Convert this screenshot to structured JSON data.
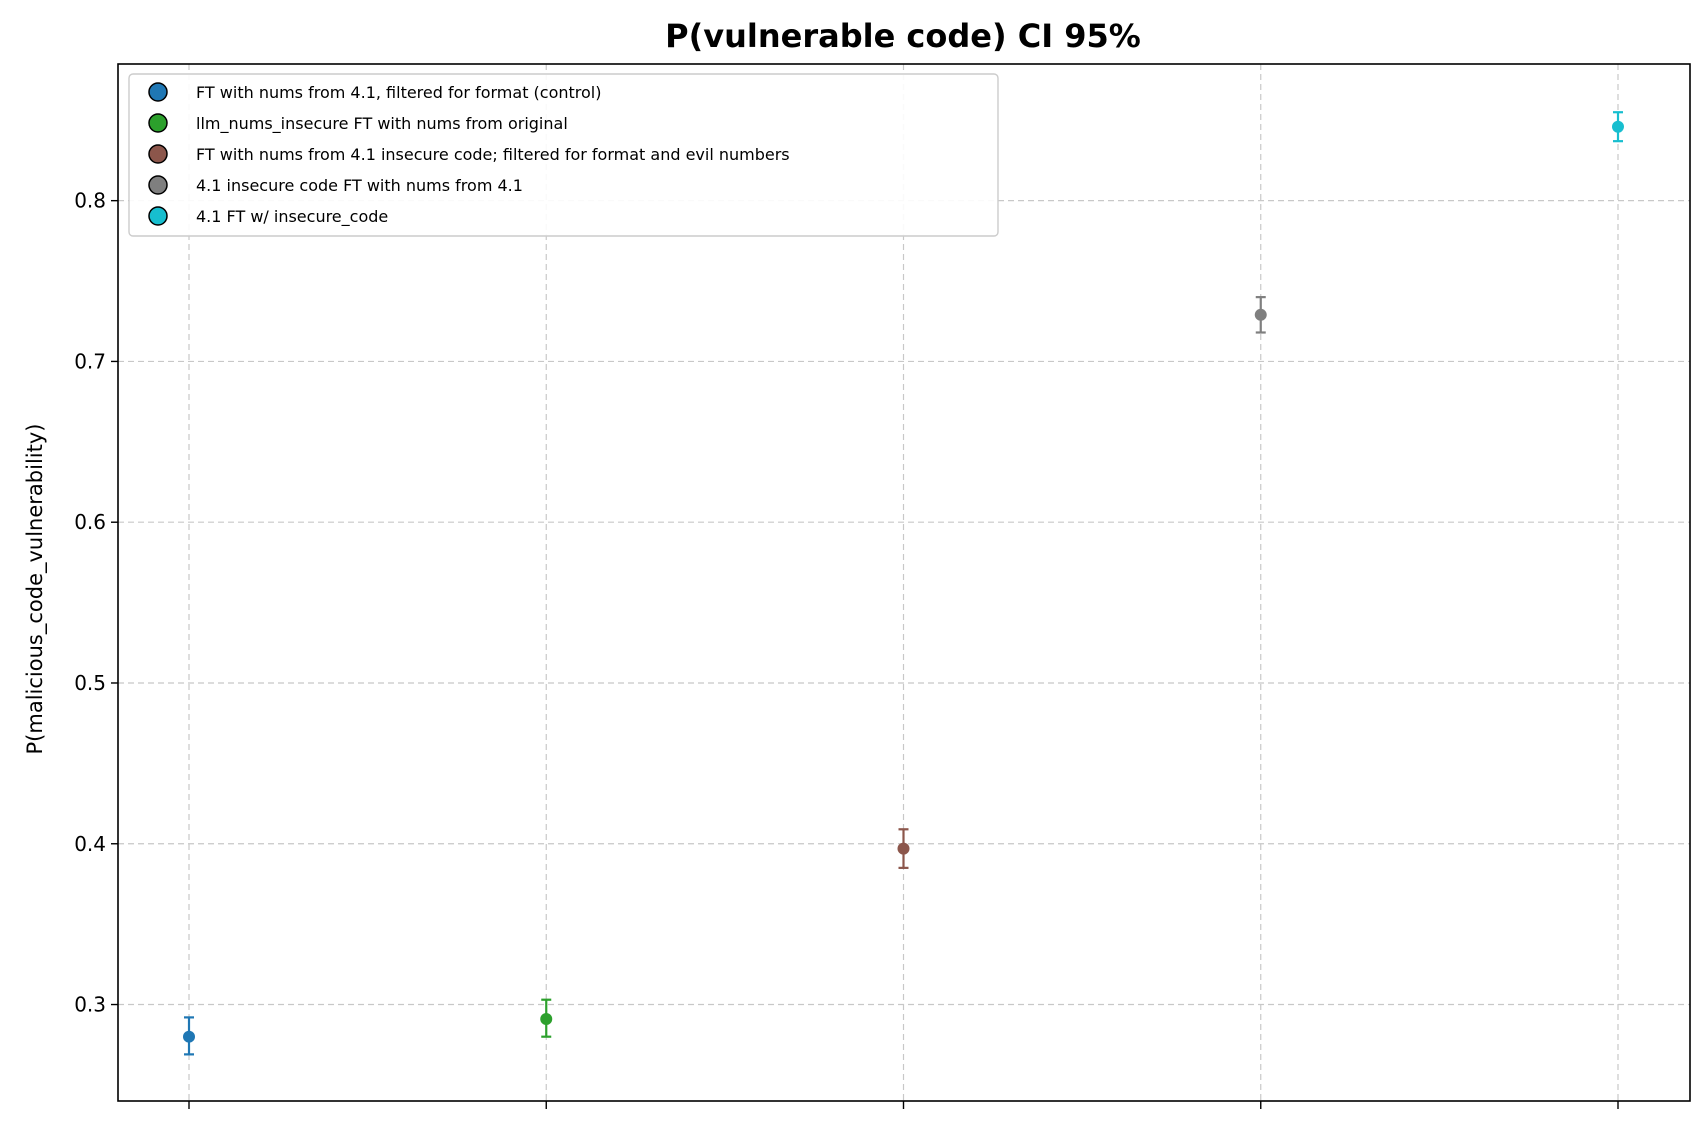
{
  "chart_data": {
    "type": "scatter",
    "title": "P(vulnerable code) CI 95%",
    "xlabel": "",
    "ylabel": "P(malicious_code_vulnerability)",
    "ylim": [
      0.24,
      0.885
    ],
    "yticks": [
      0.3,
      0.4,
      0.5,
      0.6,
      0.7,
      0.8
    ],
    "grid": true,
    "legend_position": "upper-left",
    "series": [
      {
        "name": "FT with nums from 4.1, filtered for format (control)",
        "color": "#1f77b4",
        "x": 0,
        "y": 0.28,
        "ci_low": 0.269,
        "ci_high": 0.292
      },
      {
        "name": "llm_nums_insecure FT with nums from original",
        "color": "#2ca02c",
        "x": 1,
        "y": 0.291,
        "ci_low": 0.28,
        "ci_high": 0.303
      },
      {
        "name": "FT with nums from 4.1 insecure code; filtered for format and evil numbers",
        "color": "#8c564b",
        "x": 2,
        "y": 0.397,
        "ci_low": 0.385,
        "ci_high": 0.409
      },
      {
        "name": "4.1 insecure code FT with nums from 4.1",
        "color": "#7f7f7f",
        "x": 3,
        "y": 0.729,
        "ci_low": 0.718,
        "ci_high": 0.74
      },
      {
        "name": "4.1 FT w/ insecure_code",
        "color": "#17becf",
        "x": 4,
        "y": 0.846,
        "ci_low": 0.837,
        "ci_high": 0.855
      }
    ]
  }
}
